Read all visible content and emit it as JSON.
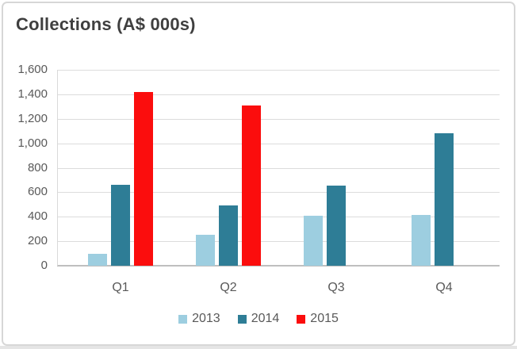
{
  "card": {
    "title": "Collections (A$ 000s)"
  },
  "chart_data": {
    "type": "bar",
    "title": "Collections (A$ 000s)",
    "categories": [
      "Q1",
      "Q2",
      "Q3",
      "Q4"
    ],
    "series": [
      {
        "name": "2013",
        "color": "#9dcee0",
        "values": [
          95,
          250,
          410,
          415
        ]
      },
      {
        "name": "2014",
        "color": "#2e7d96",
        "values": [
          660,
          490,
          655,
          1080
        ]
      },
      {
        "name": "2015",
        "color": "#fb0d0d",
        "values": [
          1420,
          1310,
          0,
          0
        ]
      }
    ],
    "xlabel": "",
    "ylabel": "",
    "ylim": [
      0,
      1600
    ],
    "ytick_step": 200,
    "ytick_labels": [
      "0",
      "200",
      "400",
      "600",
      "800",
      "1,000",
      "1,200",
      "1,400",
      "1,600"
    ],
    "grid": true,
    "legend_position": "bottom-center"
  }
}
